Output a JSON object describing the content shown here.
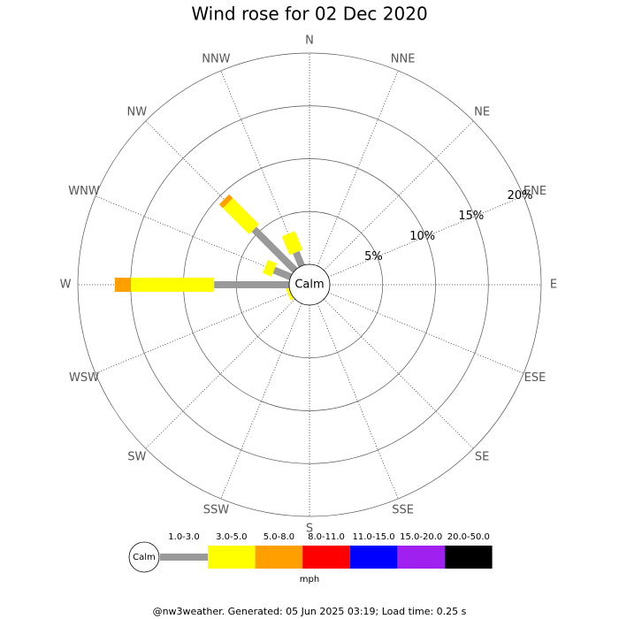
{
  "chart_data": {
    "type": "windrose",
    "title": "Wind rose for 02 Dec 2020",
    "directions": [
      "N",
      "NNE",
      "NE",
      "ENE",
      "E",
      "ESE",
      "SE",
      "SSE",
      "S",
      "SSW",
      "SW",
      "WSW",
      "W",
      "WNW",
      "NW",
      "NNW"
    ],
    "calm_label": "Calm",
    "units": "mph",
    "rlim": [
      0,
      20
    ],
    "rticks": [
      {
        "value": 5,
        "label": "5%"
      },
      {
        "value": 10,
        "label": "10%"
      },
      {
        "value": 15,
        "label": "15%"
      },
      {
        "value": 20,
        "label": "20%"
      }
    ],
    "series": [
      {
        "name": "1.0-3.0",
        "color": "#999999",
        "values": [
          0,
          0,
          0,
          0,
          0,
          0,
          0,
          0,
          0,
          0,
          0,
          0,
          7.1,
          1.7,
          5.5,
          1.4
        ]
      },
      {
        "name": "3.0-5.0",
        "color": "#ffff00",
        "values": [
          0,
          0,
          0,
          0,
          0,
          0,
          0,
          0,
          0,
          0,
          0,
          0.3,
          7.9,
          0.9,
          3.5,
          1.9
        ]
      },
      {
        "name": "5.0-8.0",
        "color": "#ffa000",
        "values": [
          0,
          0,
          0,
          0,
          0,
          0,
          0,
          0,
          0,
          0,
          0,
          0,
          1.5,
          0,
          0.5,
          0
        ]
      },
      {
        "name": "8.0-11.0",
        "color": "#ff0000",
        "values": [
          0,
          0,
          0,
          0,
          0,
          0,
          0,
          0,
          0,
          0,
          0,
          0,
          0,
          0,
          0,
          0
        ]
      },
      {
        "name": "11.0-15.0",
        "color": "#0000ff",
        "values": [
          0,
          0,
          0,
          0,
          0,
          0,
          0,
          0,
          0,
          0,
          0,
          0,
          0,
          0,
          0,
          0
        ]
      },
      {
        "name": "15.0-20.0",
        "color": "#a020f0",
        "values": [
          0,
          0,
          0,
          0,
          0,
          0,
          0,
          0,
          0,
          0,
          0,
          0,
          0,
          0,
          0,
          0
        ]
      },
      {
        "name": "20.0-50.0",
        "color": "#000000",
        "values": [
          0,
          0,
          0,
          0,
          0,
          0,
          0,
          0,
          0,
          0,
          0,
          0,
          0,
          0,
          0,
          0
        ]
      }
    ]
  },
  "footer": "@nw3weather. Generated: 05 Jun 2025 03:19; Load time: 0.25 s"
}
